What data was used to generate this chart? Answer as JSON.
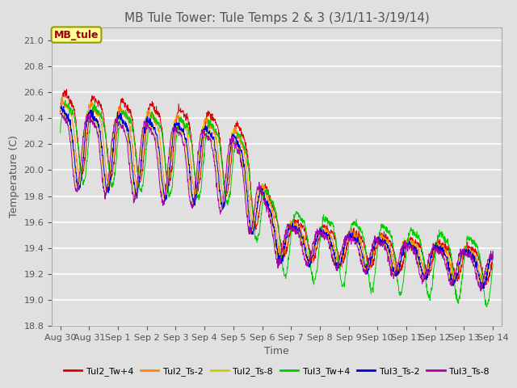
{
  "title": "MB Tule Tower: Tule Temps 2 & 3 (3/1/11-3/19/14)",
  "xlabel": "Time",
  "ylabel": "Temperature (C)",
  "ylim": [
    18.8,
    21.1
  ],
  "background_color": "#e0e0e0",
  "grid_color": "#ffffff",
  "series": [
    {
      "label": "Tul2_Tw+4",
      "color": "#dd0000"
    },
    {
      "label": "Tul2_Ts-2",
      "color": "#ff8800"
    },
    {
      "label": "Tul2_Ts-8",
      "color": "#cccc00"
    },
    {
      "label": "Tul3_Tw+4",
      "color": "#00cc00"
    },
    {
      "label": "Tul3_Ts-2",
      "color": "#0000dd"
    },
    {
      "label": "Tul3_Ts-8",
      "color": "#aa00aa"
    }
  ],
  "xtick_labels": [
    "Aug 30",
    "Aug 31",
    "Sep 1",
    "Sep 2",
    "Sep 3",
    "Sep 4",
    "Sep 5",
    "Sep 6",
    "Sep 7",
    "Sep 8",
    "Sep 9",
    "Sep 10",
    "Sep 11",
    "Sep 12",
    "Sep 13",
    "Sep 14"
  ],
  "ytick_labels": [
    "18.8",
    "19.0",
    "19.2",
    "19.4",
    "19.6",
    "19.8",
    "20.0",
    "20.2",
    "20.4",
    "20.6",
    "20.8",
    "21.0"
  ],
  "ytick_vals": [
    18.8,
    19.0,
    19.2,
    19.4,
    19.6,
    19.8,
    20.0,
    20.2,
    20.4,
    20.6,
    20.8,
    21.0
  ],
  "annotation_text": "MB_tule",
  "annotation_color": "#990000",
  "annotation_bg": "#ffff99",
  "annotation_edge": "#999900",
  "title_fontsize": 11,
  "label_fontsize": 9,
  "tick_fontsize": 8
}
